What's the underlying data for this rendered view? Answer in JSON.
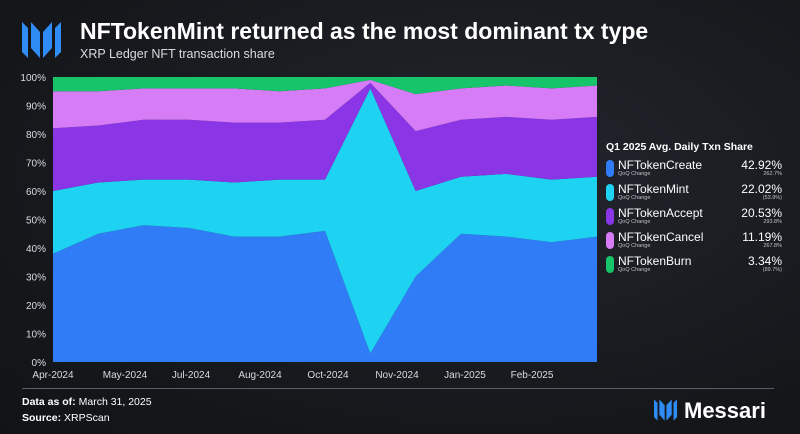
{
  "header": {
    "title": "NFTokenMint returned as the most dominant tx type",
    "subtitle": "XRP Ledger NFT transaction share"
  },
  "legend": {
    "title": "Q1 2025 Avg. Daily Txn Share",
    "sublabel": "QoQ Change",
    "items": [
      {
        "name": "NFTokenCreate",
        "share": "42.92%",
        "change": "262.7%",
        "color": "#2f7cf6"
      },
      {
        "name": "NFTokenMint",
        "share": "22.02%",
        "change": "(53.9%)",
        "color": "#1ed3f2"
      },
      {
        "name": "NFTokenAccept",
        "share": "20.53%",
        "change": "293.8%",
        "color": "#8a35e6"
      },
      {
        "name": "NFTokenCancel",
        "share": "11.19%",
        "change": "267.8%",
        "color": "#d67cf6"
      },
      {
        "name": "NFTokenBurn",
        "share": "3.34%",
        "change": "(89.7%)",
        "color": "#16c46a"
      }
    ]
  },
  "footer": {
    "data_as_of_label": "Data as of:",
    "data_as_of_value": "March 31, 2025",
    "source_label": "Source:",
    "source_value": "XRPScan"
  },
  "brand": {
    "name": "Messari",
    "icon": "messari-logo-icon"
  },
  "chart_data": {
    "type": "area",
    "stacked": true,
    "normalized": true,
    "title": "NFTokenMint returned as the most dominant tx type",
    "subtitle": "XRP Ledger NFT transaction share",
    "xlabel": "",
    "ylabel": "",
    "ylim": [
      0,
      100
    ],
    "yticks": [
      "0%",
      "10%",
      "20%",
      "30%",
      "40%",
      "50%",
      "60%",
      "70%",
      "80%",
      "90%",
      "100%"
    ],
    "xticks": [
      "Apr-2024",
      "May-2024",
      "Jul-2024",
      "Aug-2024",
      "Oct-2024",
      "Nov-2024",
      "Jan-2025",
      "Feb-2025"
    ],
    "grid": false,
    "legend_position": "right",
    "x": [
      "2024-04",
      "2024-05",
      "2024-06",
      "2024-07",
      "2024-08",
      "2024-09",
      "2024-10",
      "2024-11a",
      "2024-11b",
      "2024-12",
      "2025-01",
      "2025-02",
      "2025-03"
    ],
    "series": [
      {
        "name": "NFTokenCreate",
        "values": [
          38,
          45,
          48,
          47,
          44,
          44,
          46,
          3,
          30,
          45,
          44,
          42,
          44
        ]
      },
      {
        "name": "NFTokenMint",
        "values": [
          22,
          18,
          16,
          17,
          19,
          20,
          18,
          93,
          30,
          20,
          22,
          22,
          21
        ]
      },
      {
        "name": "NFTokenAccept",
        "values": [
          22,
          20,
          21,
          21,
          21,
          20,
          21,
          2,
          21,
          20,
          20,
          21,
          21
        ]
      },
      {
        "name": "NFTokenCancel",
        "values": [
          13,
          12,
          11,
          11,
          12,
          11,
          11,
          1,
          13,
          11,
          11,
          11,
          11
        ]
      },
      {
        "name": "NFTokenBurn",
        "values": [
          5,
          5,
          4,
          4,
          4,
          5,
          4,
          1,
          6,
          4,
          3,
          4,
          3
        ]
      }
    ]
  }
}
